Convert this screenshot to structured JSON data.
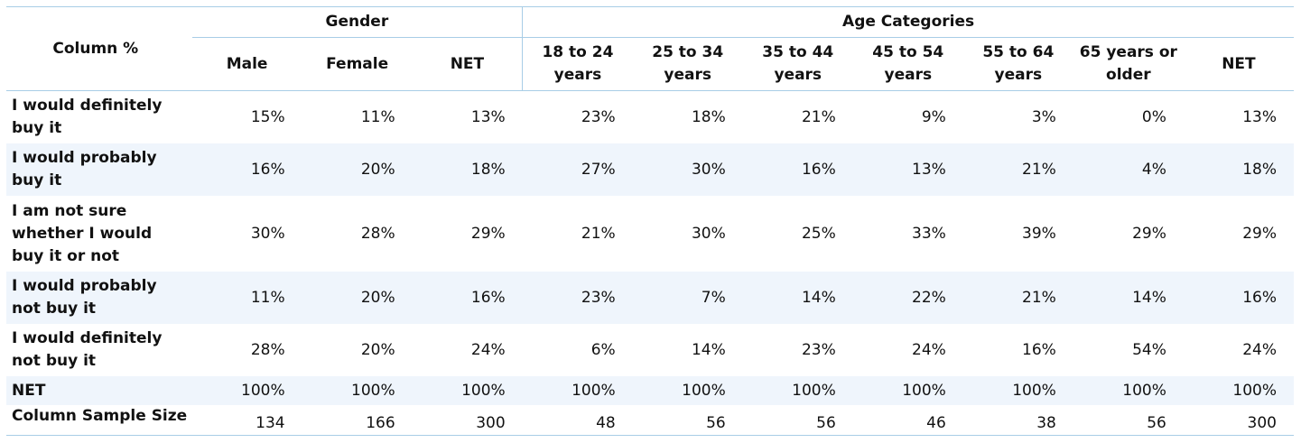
{
  "table": {
    "corner_label": "Column %",
    "groups": [
      {
        "label": "Gender",
        "span": 3
      },
      {
        "label": "Age Categories",
        "span": 7
      }
    ],
    "columns": [
      [
        "Male"
      ],
      [
        "Female"
      ],
      [
        "NET"
      ],
      [
        "18 to 24",
        "years"
      ],
      [
        "25 to 34",
        "years"
      ],
      [
        "35 to 44",
        "years"
      ],
      [
        "45 to 54",
        "years"
      ],
      [
        "55 to 64",
        "years"
      ],
      [
        "65 years or",
        "older"
      ],
      [
        "NET"
      ]
    ],
    "rows": [
      {
        "label": [
          "I would definitely",
          "buy it"
        ],
        "values": [
          "15%",
          "11%",
          "13%",
          "23%",
          "18%",
          "21%",
          "9%",
          "3%",
          "0%",
          "13%"
        ]
      },
      {
        "label": [
          "I would probably",
          "buy it"
        ],
        "values": [
          "16%",
          "20%",
          "18%",
          "27%",
          "30%",
          "16%",
          "13%",
          "21%",
          "4%",
          "18%"
        ]
      },
      {
        "label": [
          "I am not sure",
          "whether I would",
          "buy it or not"
        ],
        "values": [
          "30%",
          "28%",
          "29%",
          "21%",
          "30%",
          "25%",
          "33%",
          "39%",
          "29%",
          "29%"
        ]
      },
      {
        "label": [
          "I would probably",
          "not buy it"
        ],
        "values": [
          "11%",
          "20%",
          "16%",
          "23%",
          "7%",
          "14%",
          "22%",
          "21%",
          "14%",
          "16%"
        ]
      },
      {
        "label": [
          "I would definitely",
          "not buy it"
        ],
        "values": [
          "28%",
          "20%",
          "24%",
          "6%",
          "14%",
          "23%",
          "24%",
          "16%",
          "54%",
          "24%"
        ]
      },
      {
        "label": [
          "NET"
        ],
        "values": [
          "100%",
          "100%",
          "100%",
          "100%",
          "100%",
          "100%",
          "100%",
          "100%",
          "100%",
          "100%"
        ]
      },
      {
        "label": [
          "Column Sample Size"
        ],
        "values": [
          "134",
          "166",
          "300",
          "48",
          "56",
          "56",
          "46",
          "38",
          "56",
          "300"
        ]
      }
    ],
    "colors": {
      "border": "#a8cde6",
      "stripe": "#eff5fc"
    }
  }
}
